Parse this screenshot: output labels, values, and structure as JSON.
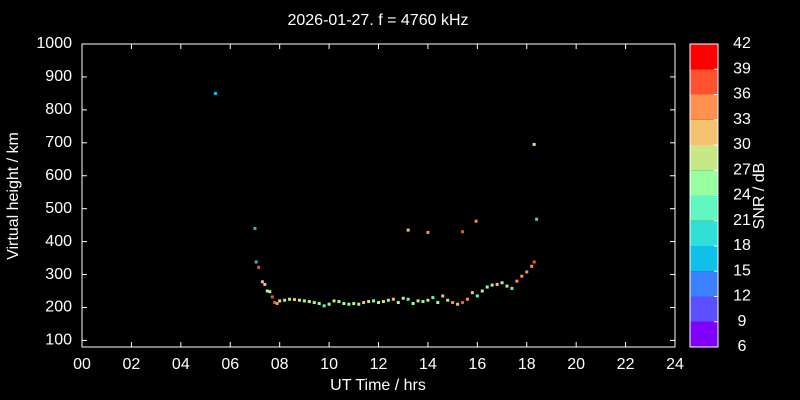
{
  "chart_data": {
    "type": "scatter",
    "title": "2026-01-27. f = 4760 kHz",
    "x_label": "UT Time / hrs",
    "y_label": "Virtual height / km",
    "xlim": [
      0,
      24
    ],
    "xticks": [
      {
        "value": 0,
        "label": "00"
      },
      {
        "value": 2,
        "label": "02"
      },
      {
        "value": 4,
        "label": "04"
      },
      {
        "value": 6,
        "label": "06"
      },
      {
        "value": 8,
        "label": "08"
      },
      {
        "value": 10,
        "label": "10"
      },
      {
        "value": 12,
        "label": "12"
      },
      {
        "value": 14,
        "label": "14"
      },
      {
        "value": 16,
        "label": "16"
      },
      {
        "value": 18,
        "label": "18"
      },
      {
        "value": 20,
        "label": "20"
      },
      {
        "value": 22,
        "label": "22"
      },
      {
        "value": 24,
        "label": "24"
      }
    ],
    "ylim": [
      80,
      1000
    ],
    "yticks": [
      100,
      200,
      300,
      400,
      500,
      600,
      700,
      800,
      900,
      1000
    ],
    "x": [
      5.4,
      7.0,
      7.05,
      7.15,
      7.3,
      7.4,
      7.5,
      7.6,
      7.7,
      7.8,
      7.9,
      8.0,
      8.2,
      8.4,
      8.6,
      8.8,
      9.0,
      9.2,
      9.4,
      9.6,
      9.8,
      10.0,
      10.2,
      10.4,
      10.6,
      10.8,
      11.0,
      11.2,
      11.4,
      11.6,
      11.8,
      12.0,
      12.2,
      12.4,
      12.6,
      12.8,
      13.0,
      13.2,
      13.2,
      13.4,
      13.6,
      13.8,
      14.0,
      14.0,
      14.2,
      14.4,
      14.6,
      14.8,
      15.0,
      15.2,
      15.4,
      15.4,
      15.6,
      15.8,
      15.95,
      16.0,
      16.2,
      16.4,
      16.6,
      16.8,
      17.0,
      17.2,
      17.4,
      17.6,
      17.8,
      18.0,
      18.2,
      18.3,
      18.3,
      18.4
    ],
    "values": [
      850,
      440,
      338,
      322,
      278,
      270,
      250,
      248,
      232,
      215,
      212,
      220,
      222,
      225,
      224,
      222,
      220,
      218,
      215,
      212,
      205,
      210,
      220,
      218,
      212,
      210,
      212,
      210,
      215,
      218,
      220,
      215,
      218,
      222,
      225,
      215,
      228,
      225,
      435,
      212,
      220,
      218,
      222,
      428,
      230,
      215,
      235,
      222,
      215,
      210,
      215,
      430,
      225,
      245,
      462,
      235,
      250,
      262,
      268,
      270,
      275,
      265,
      258,
      280,
      295,
      308,
      325,
      338,
      695,
      468
    ],
    "snr": [
      17,
      17,
      17,
      38,
      30,
      30,
      24,
      27,
      38,
      36,
      33,
      27,
      27,
      27,
      30,
      27,
      24,
      27,
      24,
      24,
      21,
      24,
      27,
      27,
      24,
      24,
      27,
      24,
      30,
      27,
      24,
      24,
      27,
      24,
      30,
      24,
      27,
      21,
      30,
      24,
      27,
      24,
      27,
      33,
      21,
      24,
      30,
      27,
      33,
      30,
      36,
      38,
      33,
      30,
      33,
      21,
      27,
      24,
      27,
      30,
      24,
      27,
      21,
      33,
      33,
      33,
      33,
      36,
      27,
      18
    ],
    "colorbar": {
      "label": "SNR / dB",
      "lim": [
        6,
        42
      ],
      "ticks": [
        6,
        9,
        12,
        15,
        18,
        21,
        24,
        27,
        30,
        33,
        36,
        39,
        42
      ],
      "colors": [
        "#8000ff",
        "#5a50ff",
        "#3a80ff",
        "#10c0e8",
        "#30e0d8",
        "#60f8c0",
        "#98ffa0",
        "#c8e888",
        "#f5c070",
        "#ff9050",
        "#ff5030",
        "#ff0000"
      ]
    }
  }
}
